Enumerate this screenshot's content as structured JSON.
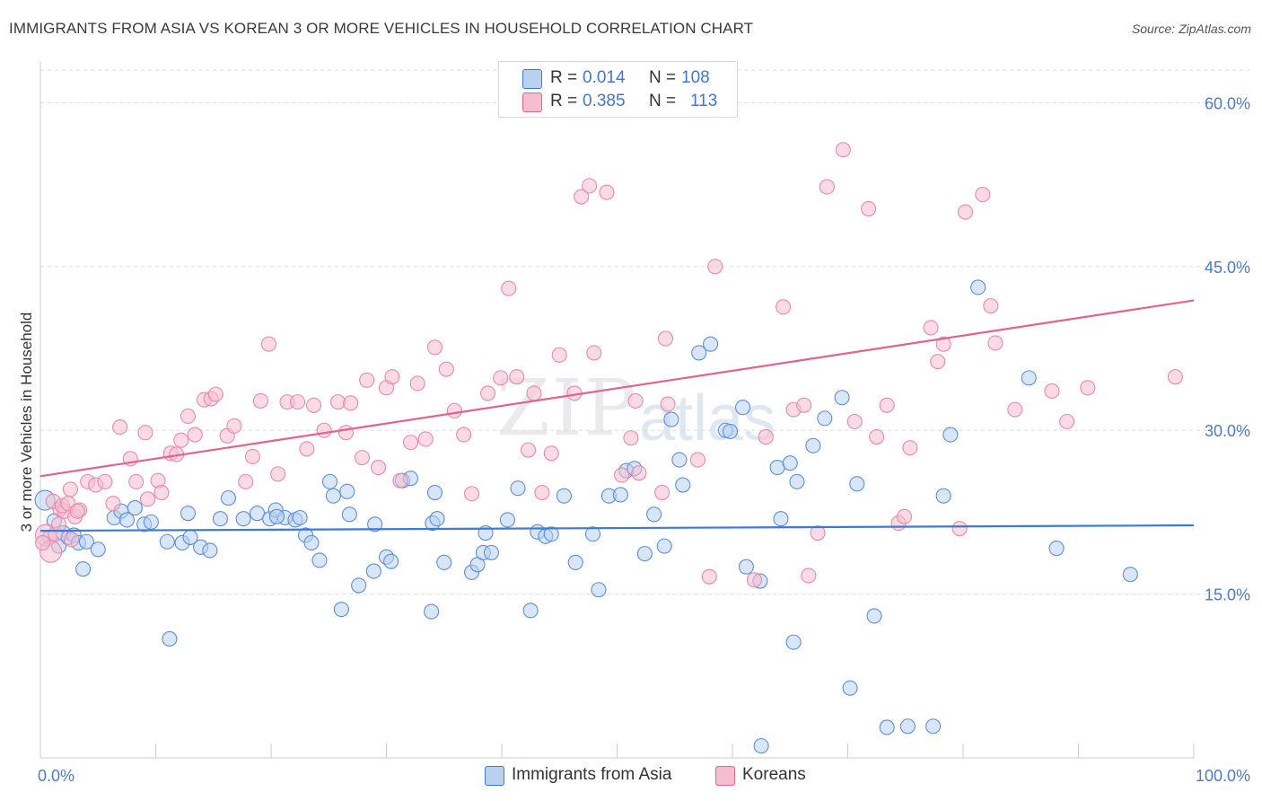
{
  "title": "IMMIGRANTS FROM ASIA VS KOREAN 3 OR MORE VEHICLES IN HOUSEHOLD CORRELATION CHART",
  "source": "Source: ZipAtlas.com",
  "watermark": {
    "zip": "ZIP",
    "atlas": "atlas"
  },
  "colors": {
    "blue": "#3a7bd5",
    "blue_fill": "#b8d1f0",
    "pink": "#e3628e",
    "pink_fill": "#f6bdd0",
    "tick": "#4a7cc9"
  },
  "legend": {
    "rows": [
      {
        "r_label": "R =",
        "r_value": "0.014",
        "n_label": "N =",
        "n_value": "108"
      },
      {
        "r_label": "R =",
        "r_value": "0.385",
        "n_label": "N =",
        "n_value": "113"
      }
    ]
  },
  "bottom_legend": {
    "items": [
      {
        "label": "Immigrants from Asia"
      },
      {
        "label": "Koreans"
      }
    ]
  },
  "chart_data": {
    "type": "scatter",
    "title": "IMMIGRANTS FROM ASIA VS KOREAN 3 OR MORE VEHICLES IN HOUSEHOLD CORRELATION CHART",
    "xlabel": "",
    "ylabel": "3 or more Vehicles in Household",
    "xlim": [
      0,
      100
    ],
    "ylim": [
      0,
      63
    ],
    "x_tick_labels": [
      "0.0%",
      "100.0%"
    ],
    "y_ticks": [
      15,
      30,
      45,
      60
    ],
    "y_tick_labels": [
      "15.0%",
      "30.0%",
      "45.0%",
      "60.0%"
    ],
    "grid": true,
    "legend_position": "top-center",
    "series": [
      {
        "name": "Immigrants from Asia",
        "color": "#3a7bd5",
        "trend": {
          "x": [
            0,
            100
          ],
          "y": [
            20.8,
            21.3
          ]
        },
        "points": [
          [
            0.4,
            23.6
          ],
          [
            0.8,
            20.2
          ],
          [
            1.2,
            21.7
          ],
          [
            1.6,
            19.4
          ],
          [
            2.0,
            20.6
          ],
          [
            2.4,
            20.2
          ],
          [
            2.9,
            20.4
          ],
          [
            3.3,
            19.7
          ],
          [
            4.0,
            19.8
          ],
          [
            5.0,
            19.1
          ],
          [
            3.7,
            17.3
          ],
          [
            6.4,
            22.0
          ],
          [
            7.0,
            22.6
          ],
          [
            7.5,
            21.8
          ],
          [
            8.2,
            22.9
          ],
          [
            9.0,
            21.4
          ],
          [
            9.6,
            21.6
          ],
          [
            11.2,
            10.9
          ],
          [
            11.0,
            19.8
          ],
          [
            12.3,
            19.7
          ],
          [
            13.0,
            20.2
          ],
          [
            12.8,
            22.4
          ],
          [
            13.9,
            19.3
          ],
          [
            14.7,
            19.0
          ],
          [
            15.6,
            21.9
          ],
          [
            16.3,
            23.8
          ],
          [
            17.6,
            21.9
          ],
          [
            18.8,
            22.4
          ],
          [
            19.9,
            21.9
          ],
          [
            20.4,
            22.7
          ],
          [
            21.2,
            22.0
          ],
          [
            22.1,
            21.8
          ],
          [
            23.0,
            20.4
          ],
          [
            23.5,
            19.7
          ],
          [
            20.5,
            22.1
          ],
          [
            24.2,
            18.1
          ],
          [
            25.1,
            25.3
          ],
          [
            25.4,
            24.0
          ],
          [
            26.6,
            24.4
          ],
          [
            22.5,
            22.0
          ],
          [
            26.8,
            22.3
          ],
          [
            27.6,
            15.8
          ],
          [
            26.1,
            13.6
          ],
          [
            28.9,
            17.1
          ],
          [
            30.0,
            18.4
          ],
          [
            29.0,
            21.4
          ],
          [
            30.4,
            18.0
          ],
          [
            31.4,
            25.4
          ],
          [
            32.1,
            25.6
          ],
          [
            34.0,
            21.5
          ],
          [
            34.4,
            21.9
          ],
          [
            35.0,
            17.9
          ],
          [
            34.2,
            24.3
          ],
          [
            33.9,
            13.4
          ],
          [
            37.4,
            17.0
          ],
          [
            37.9,
            17.7
          ],
          [
            38.4,
            18.8
          ],
          [
            38.6,
            20.6
          ],
          [
            39.1,
            18.8
          ],
          [
            40.5,
            21.8
          ],
          [
            41.4,
            24.7
          ],
          [
            42.5,
            13.5
          ],
          [
            43.1,
            20.7
          ],
          [
            43.8,
            20.3
          ],
          [
            44.3,
            20.5
          ],
          [
            45.4,
            24.0
          ],
          [
            46.4,
            17.9
          ],
          [
            47.9,
            20.5
          ],
          [
            48.4,
            15.4
          ],
          [
            49.3,
            24.0
          ],
          [
            50.3,
            24.1
          ],
          [
            50.8,
            26.3
          ],
          [
            51.5,
            26.5
          ],
          [
            52.4,
            18.7
          ],
          [
            53.2,
            22.3
          ],
          [
            54.1,
            19.4
          ],
          [
            55.7,
            25.0
          ],
          [
            54.7,
            31.0
          ],
          [
            55.4,
            27.3
          ],
          [
            57.1,
            37.1
          ],
          [
            58.1,
            37.9
          ],
          [
            59.4,
            30.0
          ],
          [
            59.8,
            29.9
          ],
          [
            60.9,
            32.1
          ],
          [
            61.2,
            17.5
          ],
          [
            62.4,
            16.2
          ],
          [
            63.9,
            26.6
          ],
          [
            65.0,
            27.0
          ],
          [
            65.6,
            25.3
          ],
          [
            64.2,
            21.9
          ],
          [
            65.3,
            10.6
          ],
          [
            67.0,
            28.6
          ],
          [
            68.0,
            31.1
          ],
          [
            69.5,
            33.0
          ],
          [
            70.8,
            25.1
          ],
          [
            70.2,
            6.4
          ],
          [
            72.3,
            13.0
          ],
          [
            73.4,
            2.8
          ],
          [
            75.2,
            2.9
          ],
          [
            77.4,
            2.9
          ],
          [
            78.3,
            24.0
          ],
          [
            78.9,
            29.6
          ],
          [
            81.3,
            43.1
          ],
          [
            62.5,
            1.1
          ],
          [
            85.7,
            34.8
          ],
          [
            94.5,
            16.8
          ],
          [
            88.1,
            19.2
          ]
        ]
      },
      {
        "name": "Koreans",
        "color": "#e3628e",
        "trend": {
          "x": [
            0,
            100
          ],
          "y": [
            25.8,
            41.9
          ]
        },
        "points": [
          [
            0.5,
            20.4
          ],
          [
            0.9,
            18.9
          ],
          [
            1.3,
            20.5
          ],
          [
            1.7,
            22.8
          ],
          [
            2.1,
            22.6
          ],
          [
            2.6,
            24.6
          ],
          [
            3.0,
            22.1
          ],
          [
            3.4,
            22.7
          ],
          [
            4.1,
            25.3
          ],
          [
            4.8,
            25.0
          ],
          [
            5.6,
            25.3
          ],
          [
            6.3,
            23.3
          ],
          [
            6.9,
            30.3
          ],
          [
            7.8,
            27.4
          ],
          [
            8.3,
            25.3
          ],
          [
            9.1,
            29.8
          ],
          [
            9.3,
            23.7
          ],
          [
            10.2,
            25.4
          ],
          [
            10.5,
            24.3
          ],
          [
            11.3,
            27.9
          ],
          [
            11.8,
            27.8
          ],
          [
            12.2,
            29.1
          ],
          [
            12.8,
            31.3
          ],
          [
            13.4,
            29.6
          ],
          [
            14.2,
            32.8
          ],
          [
            14.8,
            32.9
          ],
          [
            15.2,
            33.3
          ],
          [
            16.2,
            29.5
          ],
          [
            16.8,
            30.4
          ],
          [
            17.8,
            25.3
          ],
          [
            18.4,
            27.6
          ],
          [
            19.1,
            32.7
          ],
          [
            19.8,
            37.9
          ],
          [
            20.6,
            26.0
          ],
          [
            21.4,
            32.6
          ],
          [
            22.3,
            32.6
          ],
          [
            23.1,
            28.3
          ],
          [
            23.7,
            32.3
          ],
          [
            24.6,
            30.0
          ],
          [
            25.8,
            32.6
          ],
          [
            26.5,
            29.8
          ],
          [
            26.9,
            32.5
          ],
          [
            27.9,
            27.5
          ],
          [
            28.3,
            34.6
          ],
          [
            29.3,
            26.6
          ],
          [
            30.0,
            33.9
          ],
          [
            30.5,
            34.9
          ],
          [
            31.2,
            25.4
          ],
          [
            32.1,
            28.9
          ],
          [
            32.7,
            34.3
          ],
          [
            33.4,
            29.2
          ],
          [
            34.2,
            37.6
          ],
          [
            35.2,
            35.6
          ],
          [
            35.9,
            31.8
          ],
          [
            36.7,
            29.6
          ],
          [
            37.4,
            24.2
          ],
          [
            38.8,
            33.4
          ],
          [
            39.9,
            34.8
          ],
          [
            40.6,
            43.0
          ],
          [
            41.3,
            34.9
          ],
          [
            42.3,
            28.2
          ],
          [
            42.8,
            33.4
          ],
          [
            43.5,
            24.3
          ],
          [
            44.3,
            27.9
          ],
          [
            45.0,
            36.9
          ],
          [
            46.3,
            33.4
          ],
          [
            46.9,
            51.4
          ],
          [
            47.6,
            52.4
          ],
          [
            48.0,
            37.1
          ],
          [
            49.1,
            51.8
          ],
          [
            50.4,
            25.9
          ],
          [
            51.2,
            29.3
          ],
          [
            51.6,
            32.7
          ],
          [
            51.9,
            26.1
          ],
          [
            53.9,
            24.3
          ],
          [
            54.2,
            38.4
          ],
          [
            54.4,
            32.4
          ],
          [
            57.0,
            27.3
          ],
          [
            58.0,
            16.6
          ],
          [
            58.5,
            45.0
          ],
          [
            61.9,
            16.3
          ],
          [
            62.9,
            29.4
          ],
          [
            64.4,
            41.3
          ],
          [
            65.3,
            31.9
          ],
          [
            66.2,
            32.3
          ],
          [
            66.6,
            16.7
          ],
          [
            67.4,
            20.6
          ],
          [
            68.2,
            52.3
          ],
          [
            69.6,
            55.7
          ],
          [
            70.6,
            30.8
          ],
          [
            71.8,
            50.3
          ],
          [
            72.5,
            29.4
          ],
          [
            73.4,
            32.3
          ],
          [
            74.4,
            21.5
          ],
          [
            74.9,
            22.1
          ],
          [
            75.4,
            28.4
          ],
          [
            77.2,
            39.4
          ],
          [
            77.8,
            36.3
          ],
          [
            78.3,
            37.9
          ],
          [
            79.7,
            21.0
          ],
          [
            80.2,
            50.0
          ],
          [
            81.7,
            51.6
          ],
          [
            82.4,
            41.4
          ],
          [
            82.8,
            38.0
          ],
          [
            84.5,
            31.9
          ],
          [
            87.7,
            33.6
          ],
          [
            89.0,
            30.8
          ],
          [
            90.8,
            33.9
          ],
          [
            98.4,
            34.9
          ],
          [
            1.1,
            23.5
          ],
          [
            2.7,
            20.0
          ],
          [
            0.2,
            19.7
          ],
          [
            1.6,
            21.4
          ],
          [
            1.9,
            23.1
          ],
          [
            2.4,
            23.3
          ],
          [
            3.2,
            22.6
          ]
        ]
      }
    ]
  }
}
